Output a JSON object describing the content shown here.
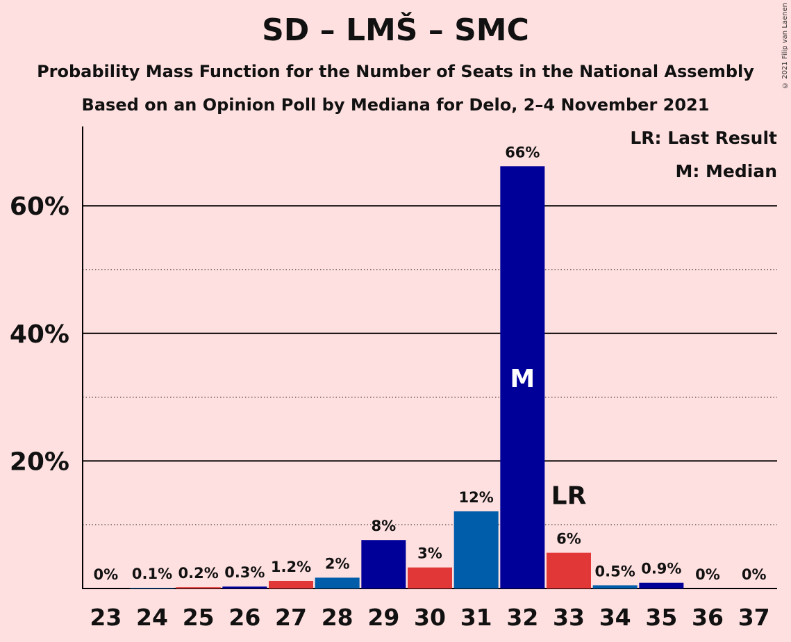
{
  "chart_data": {
    "type": "bar",
    "title": "SD – LMŠ – SMC",
    "subtitle1": "Probability Mass Function for the Number of Seats in the National Assembly",
    "subtitle2": "Based on an Opinion Poll by Mediana for Delo, 2–4 November 2021",
    "copyright": "© 2021 Filip van Laenen",
    "categories": [
      "23",
      "24",
      "25",
      "26",
      "27",
      "28",
      "29",
      "30",
      "31",
      "32",
      "33",
      "34",
      "35",
      "36",
      "37"
    ],
    "values": [
      0,
      0.1,
      0.2,
      0.3,
      1.2,
      1.7,
      7.6,
      3.3,
      12.1,
      66.2,
      5.6,
      0.5,
      0.9,
      0,
      0
    ],
    "labels": [
      "0%",
      "0.1%",
      "0.2%",
      "0.3%",
      "1.2%",
      "2%",
      "8%",
      "3%",
      "12%",
      "66%",
      "6%",
      "0.5%",
      "0.9%",
      "0%",
      "0%"
    ],
    "colors": [
      "#000099",
      "#005DAA",
      "#E23737",
      "#000099",
      "#E23737",
      "#005DAA",
      "#000099",
      "#E23737",
      "#005DAA",
      "#000099",
      "#E23737",
      "#005DAA",
      "#000099",
      "#E23737",
      "#005DAA"
    ],
    "ylim": [
      0,
      72
    ],
    "yticks_major": [
      20,
      40,
      60
    ],
    "ytick_labels": [
      "20%",
      "40%",
      "60%"
    ],
    "yticks_minor": [
      10,
      30,
      50
    ],
    "median_marker": {
      "category": "32",
      "label": "M"
    },
    "last_result_marker": {
      "category": "33",
      "label": "LR"
    },
    "legend": {
      "lr": "LR: Last Result",
      "m": "M: Median",
      "position": "top-right"
    }
  }
}
